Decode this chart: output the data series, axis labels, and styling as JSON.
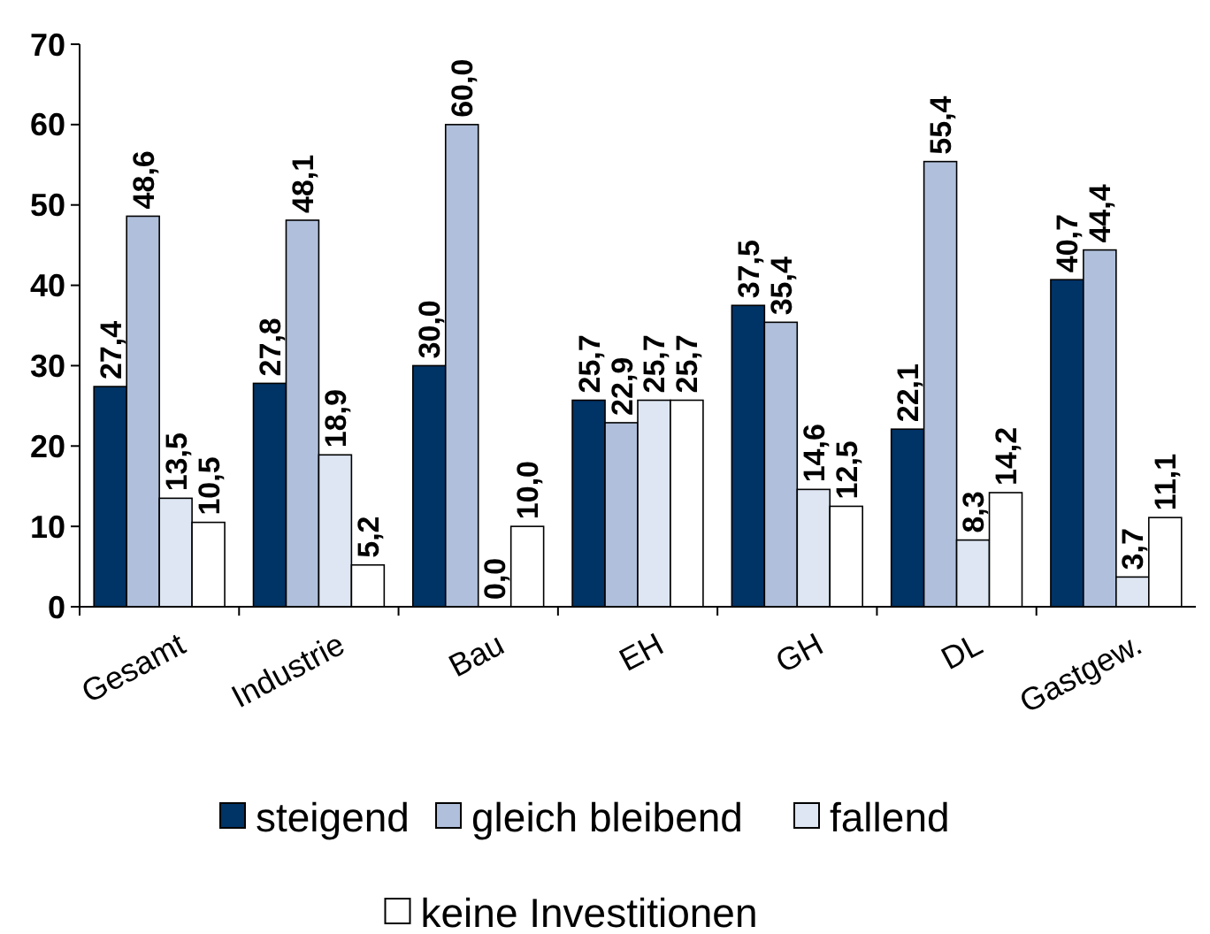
{
  "chart_data": {
    "type": "bar",
    "categories": [
      "Gesamt",
      "Industrie",
      "Bau",
      "EH",
      "GH",
      "DL",
      "Gastgew."
    ],
    "series": [
      {
        "name": "steigend",
        "color": "#003366",
        "values": [
          27.4,
          27.8,
          30.0,
          25.7,
          37.5,
          22.1,
          40.7
        ],
        "value_labels": [
          "27,4",
          "27,8",
          "30,0",
          "25,7",
          "37,5",
          "22,1",
          "40,7"
        ]
      },
      {
        "name": "gleich bleibend",
        "color": "#b0c0dc",
        "values": [
          48.6,
          48.1,
          60.0,
          22.9,
          35.4,
          55.4,
          44.4
        ],
        "value_labels": [
          "48,6",
          "48,1",
          "60,0",
          "22,9",
          "35,4",
          "55,4",
          "44,4"
        ]
      },
      {
        "name": "fallend",
        "color": "#dde6f2",
        "values": [
          13.5,
          18.9,
          0.0,
          25.7,
          14.6,
          8.3,
          3.7
        ],
        "value_labels": [
          "13,5",
          "18,9",
          "0,0",
          "25,7",
          "14,6",
          "8,3",
          "3,7"
        ]
      },
      {
        "name": "keine Investitionen",
        "color": "#ffffff",
        "values": [
          10.5,
          5.2,
          10.0,
          25.7,
          12.5,
          14.2,
          11.1
        ],
        "value_labels": [
          "10,5",
          "5,2",
          "10,0",
          "25,7",
          "12,5",
          "14,2",
          "11,1"
        ]
      }
    ],
    "ylim": [
      0,
      70
    ],
    "yticks": [
      0,
      10,
      20,
      30,
      40,
      50,
      60,
      70
    ],
    "grid": false,
    "legend": "bottom"
  }
}
